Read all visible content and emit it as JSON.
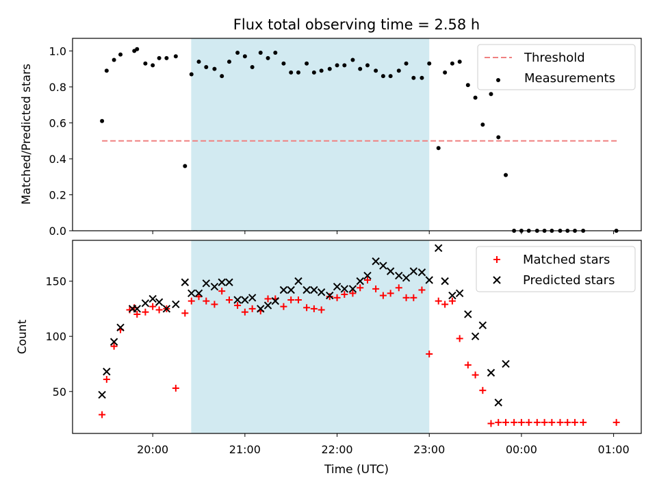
{
  "chart_data": {
    "title": "Flux total observing time = 2.58 h",
    "xlabel": "Time (UTC)",
    "x_unit": "hours (UTC, values > 24 are after midnight)",
    "x_ticks": [
      {
        "value": 20,
        "label": "20:00"
      },
      {
        "value": 21,
        "label": "21:00"
      },
      {
        "value": 22,
        "label": "22:00"
      },
      {
        "value": 23,
        "label": "23:00"
      },
      {
        "value": 24,
        "label": "00:00"
      },
      {
        "value": 25,
        "label": "01:00"
      }
    ],
    "xlim": [
      19.13,
      25.3
    ],
    "highlight_span": [
      20.417,
      23.0
    ],
    "highlight_color": "#add8e6",
    "panels": [
      {
        "type": "scatter",
        "ylabel": "Matched/Predicted stars",
        "ylim": [
          0,
          1.07
        ],
        "y_ticks": [
          0.0,
          0.2,
          0.4,
          0.6,
          0.8,
          1.0
        ],
        "y_tick_labels": [
          "0.0",
          "0.2",
          "0.4",
          "0.6",
          "0.8",
          "1.0"
        ],
        "legend_position": "top-right",
        "series": [
          {
            "name": "Threshold",
            "kind": "dashed-line",
            "color": "#f08080",
            "x": [
              19.45,
              25.05
            ],
            "y": [
              0.5,
              0.5
            ]
          },
          {
            "name": "Measurements",
            "kind": "dots",
            "color": "#000000",
            "x": [
              19.45,
              19.5,
              19.58,
              19.65,
              19.8,
              19.83,
              19.92,
              20.0,
              20.07,
              20.15,
              20.25,
              20.35,
              20.42,
              20.5,
              20.58,
              20.67,
              20.75,
              20.83,
              20.92,
              21.0,
              21.08,
              21.17,
              21.25,
              21.33,
              21.42,
              21.5,
              21.58,
              21.67,
              21.75,
              21.83,
              21.92,
              22.0,
              22.08,
              22.17,
              22.25,
              22.33,
              22.42,
              22.5,
              22.58,
              22.67,
              22.75,
              22.83,
              22.92,
              23.0,
              23.1,
              23.17,
              23.25,
              23.33,
              23.42,
              23.5,
              23.58,
              23.67,
              23.75,
              23.83,
              23.92,
              24.0,
              24.08,
              24.17,
              24.25,
              24.33,
              24.42,
              24.5,
              24.58,
              24.67,
              25.03
            ],
            "y": [
              0.61,
              0.89,
              0.95,
              0.98,
              1.0,
              1.01,
              0.93,
              0.92,
              0.96,
              0.96,
              0.97,
              0.36,
              0.87,
              0.94,
              0.91,
              0.9,
              0.86,
              0.94,
              0.99,
              0.97,
              0.91,
              0.99,
              0.96,
              0.99,
              0.93,
              0.88,
              0.88,
              0.93,
              0.88,
              0.89,
              0.9,
              0.92,
              0.92,
              0.95,
              0.9,
              0.92,
              0.89,
              0.86,
              0.86,
              0.89,
              0.93,
              0.85,
              0.85,
              0.93,
              0.46,
              0.88,
              0.93,
              0.94,
              0.81,
              0.74,
              0.59,
              0.76,
              0.52,
              0.31,
              0.0,
              0.0,
              0.0,
              0.0,
              0.0,
              0.0,
              0.0,
              0.0,
              0.0,
              0.0,
              0.0
            ]
          }
        ]
      },
      {
        "type": "scatter",
        "ylabel": "Count",
        "ylim": [
          12,
          187
        ],
        "y_ticks": [
          50,
          100,
          150
        ],
        "y_tick_labels": [
          "50",
          "100",
          "150"
        ],
        "legend_position": "top-right",
        "series": [
          {
            "name": "Matched stars",
            "kind": "plus",
            "color": "#ff0000",
            "x": [
              19.45,
              19.5,
              19.58,
              19.65,
              19.75,
              19.8,
              19.83,
              19.92,
              20.0,
              20.07,
              20.15,
              20.25,
              20.35,
              20.42,
              20.5,
              20.58,
              20.67,
              20.75,
              20.83,
              20.92,
              21.0,
              21.08,
              21.17,
              21.25,
              21.33,
              21.42,
              21.5,
              21.58,
              21.67,
              21.75,
              21.83,
              21.92,
              22.0,
              22.08,
              22.17,
              22.25,
              22.33,
              22.42,
              22.5,
              22.58,
              22.67,
              22.75,
              22.83,
              22.92,
              23.0,
              23.1,
              23.17,
              23.25,
              23.33,
              23.42,
              23.5,
              23.58,
              23.67,
              23.75,
              23.83,
              23.92,
              24.0,
              24.08,
              24.17,
              24.25,
              24.33,
              24.42,
              24.5,
              24.58,
              24.67,
              25.03
            ],
            "y": [
              29,
              61,
              91,
              106,
              124,
              126,
              120,
              122,
              127,
              124,
              125,
              53,
              121,
              132,
              136,
              132,
              129,
              141,
              133,
              128,
              122,
              125,
              123,
              134,
              134,
              127,
              133,
              133,
              126,
              125,
              124,
              136,
              135,
              138,
              139,
              144,
              151,
              143,
              137,
              139,
              144,
              135,
              135,
              142,
              84,
              132,
              129,
              132,
              98,
              74,
              65,
              51,
              21,
              22,
              22,
              22,
              22,
              22,
              22,
              22,
              22,
              22,
              22,
              22,
              22,
              22
            ]
          },
          {
            "name": "Predicted stars",
            "kind": "cross",
            "color": "#000000",
            "x": [
              19.45,
              19.5,
              19.58,
              19.65,
              19.78,
              19.83,
              19.92,
              20.0,
              20.07,
              20.15,
              20.25,
              20.35,
              20.42,
              20.5,
              20.58,
              20.67,
              20.75,
              20.83,
              20.92,
              21.0,
              21.08,
              21.17,
              21.25,
              21.33,
              21.42,
              21.5,
              21.58,
              21.67,
              21.75,
              21.83,
              21.92,
              22.0,
              22.08,
              22.17,
              22.25,
              22.33,
              22.42,
              22.5,
              22.58,
              22.67,
              22.75,
              22.83,
              22.92,
              23.0,
              23.1,
              23.17,
              23.25,
              23.33,
              23.42,
              23.5,
              23.58,
              23.67,
              23.75,
              23.83
            ],
            "y": [
              47,
              68,
              95,
              108,
              125,
              125,
              130,
              134,
              131,
              125,
              129,
              149,
              139,
              139,
              148,
              145,
              149,
              149,
              133,
              133,
              135,
              125,
              128,
              132,
              142,
              142,
              150,
              142,
              142,
              140,
              137,
              145,
              143,
              143,
              150,
              155,
              168,
              164,
              159,
              155,
              153,
              159,
              158,
              151,
              180,
              150,
              137,
              139,
              120,
              100,
              110,
              67,
              40,
              75
            ]
          }
        ]
      }
    ]
  }
}
